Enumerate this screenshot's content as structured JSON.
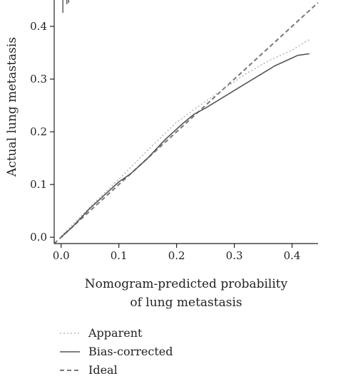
{
  "chart_data": {
    "type": "line",
    "title": "",
    "xlabel_lines": [
      "Nomogram-predicted probability",
      "of lung metastasis"
    ],
    "ylabel": "Actual lung metastasis",
    "xlim": [
      -0.012,
      0.445
    ],
    "ylim": [
      -0.012,
      0.45
    ],
    "x_ticks": [
      0.0,
      0.1,
      0.2,
      0.3,
      0.4
    ],
    "x_tick_labels": [
      "0.0",
      "0.1",
      "0.2",
      "0.3",
      "0.4"
    ],
    "y_ticks": [
      0.0,
      0.1,
      0.2,
      0.3,
      0.4
    ],
    "y_tick_labels": [
      "0.0",
      "0.1",
      "0.2",
      "0.3",
      "0.4"
    ],
    "grid": false,
    "legend_position": "bottom-left",
    "series": [
      {
        "name": "Apparent",
        "style": "dotted",
        "color": "#aaaaaa",
        "points": [
          [
            0.0,
            0.002
          ],
          [
            0.03,
            0.035
          ],
          [
            0.06,
            0.068
          ],
          [
            0.1,
            0.11
          ],
          [
            0.15,
            0.165
          ],
          [
            0.2,
            0.218
          ],
          [
            0.24,
            0.25
          ],
          [
            0.28,
            0.28
          ],
          [
            0.32,
            0.31
          ],
          [
            0.36,
            0.335
          ],
          [
            0.4,
            0.355
          ],
          [
            0.43,
            0.375
          ]
        ]
      },
      {
        "name": "Bias-corrected",
        "style": "solid",
        "color": "#555555",
        "points": [
          [
            0.0,
            0.0
          ],
          [
            0.02,
            0.02
          ],
          [
            0.05,
            0.055
          ],
          [
            0.08,
            0.085
          ],
          [
            0.1,
            0.105
          ],
          [
            0.12,
            0.12
          ],
          [
            0.15,
            0.15
          ],
          [
            0.18,
            0.185
          ],
          [
            0.21,
            0.215
          ],
          [
            0.23,
            0.233
          ],
          [
            0.25,
            0.245
          ],
          [
            0.28,
            0.265
          ],
          [
            0.31,
            0.285
          ],
          [
            0.34,
            0.305
          ],
          [
            0.37,
            0.325
          ],
          [
            0.39,
            0.335
          ],
          [
            0.41,
            0.345
          ],
          [
            0.43,
            0.348
          ]
        ]
      },
      {
        "name": "Ideal",
        "style": "dashed",
        "color": "#777777",
        "points": [
          [
            -0.012,
            -0.012
          ],
          [
            0.445,
            0.445
          ]
        ]
      }
    ]
  }
}
